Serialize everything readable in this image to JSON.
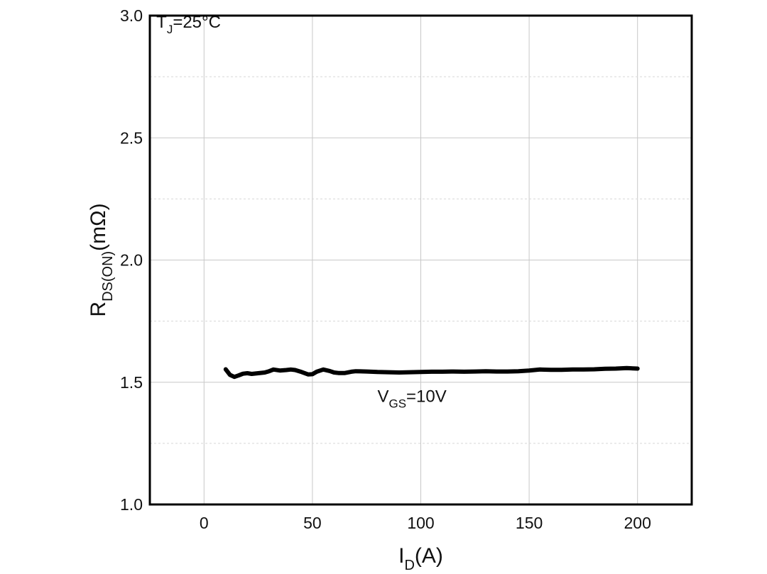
{
  "chart_data": {
    "type": "line",
    "title": "",
    "xlabel": {
      "main": "I",
      "sub": "D",
      "unit": "(A)"
    },
    "ylabel": {
      "main": "R",
      "sub": "DS(ON)",
      "unit": "(mΩ)"
    },
    "xlim": [
      -25,
      225
    ],
    "ylim": [
      1.0,
      3.0
    ],
    "x_ticks": [
      0,
      50,
      100,
      150,
      200
    ],
    "x_tick_labels": [
      "0",
      "50",
      "100",
      "150",
      "200"
    ],
    "y_ticks": [
      1.0,
      1.5,
      2.0,
      2.5,
      3.0
    ],
    "y_tick_labels": [
      "1.0",
      "1.5",
      "2.0",
      "2.5",
      "3.0"
    ],
    "y_minor_grid": [
      1.25,
      1.75,
      2.25,
      2.75
    ],
    "grid": true,
    "series": [
      {
        "color": "#000000",
        "x": [
          10,
          12,
          14,
          16,
          18,
          20,
          22,
          25,
          28,
          30,
          32,
          35,
          38,
          40,
          42,
          45,
          48,
          50,
          52,
          55,
          58,
          60,
          62,
          65,
          68,
          70,
          75,
          80,
          85,
          90,
          95,
          100,
          105,
          110,
          115,
          120,
          125,
          130,
          135,
          140,
          145,
          150,
          155,
          160,
          165,
          170,
          175,
          180,
          185,
          190,
          195,
          200
        ],
        "y": [
          1.553,
          1.53,
          1.522,
          1.528,
          1.535,
          1.537,
          1.534,
          1.537,
          1.54,
          1.545,
          1.552,
          1.548,
          1.55,
          1.552,
          1.55,
          1.542,
          1.532,
          1.533,
          1.543,
          1.552,
          1.546,
          1.54,
          1.538,
          1.538,
          1.543,
          1.545,
          1.544,
          1.542,
          1.541,
          1.54,
          1.541,
          1.542,
          1.543,
          1.543,
          1.544,
          1.543,
          1.544,
          1.545,
          1.544,
          1.544,
          1.545,
          1.548,
          1.552,
          1.551,
          1.551,
          1.552,
          1.552,
          1.553,
          1.555,
          1.556,
          1.558,
          1.556
        ]
      }
    ],
    "annotations": [
      {
        "main": "T",
        "sub": "J",
        "rest": "=25°C",
        "x": -22,
        "y": 2.95
      },
      {
        "main": "V",
        "sub": "GS",
        "rest": "=10V",
        "x": 80,
        "y": 1.42
      }
    ]
  }
}
